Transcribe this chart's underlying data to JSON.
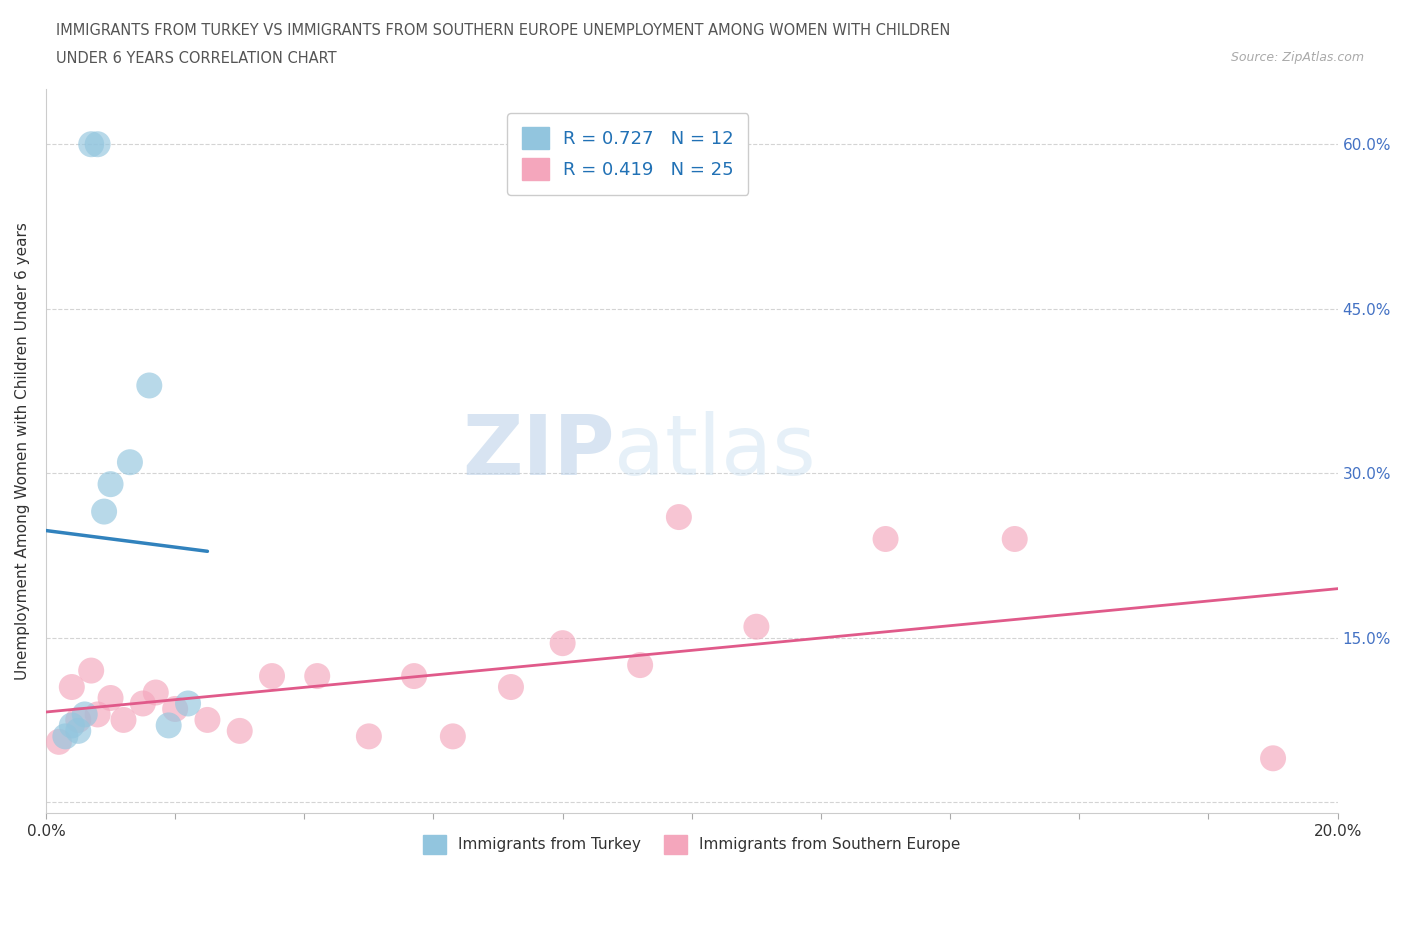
{
  "title_line1": "IMMIGRANTS FROM TURKEY VS IMMIGRANTS FROM SOUTHERN EUROPE UNEMPLOYMENT AMONG WOMEN WITH CHILDREN",
  "title_line2": "UNDER 6 YEARS CORRELATION CHART",
  "source": "Source: ZipAtlas.com",
  "ylabel": "Unemployment Among Women with Children Under 6 years",
  "xlim": [
    0.0,
    0.2
  ],
  "ylim": [
    -0.01,
    0.65
  ],
  "xticks": [
    0.0,
    0.02,
    0.04,
    0.06,
    0.08,
    0.1,
    0.12,
    0.14,
    0.16,
    0.18,
    0.2
  ],
  "yticks_right": [
    0.0,
    0.15,
    0.3,
    0.45,
    0.6
  ],
  "yticklabels_right": [
    "",
    "15.0%",
    "30.0%",
    "45.0%",
    "60.0%"
  ],
  "turkey_color": "#92c5de",
  "turkey_line_color": "#3182bd",
  "southern_color": "#f4a6bc",
  "southern_line_color": "#e05a8a",
  "R_turkey": 0.727,
  "N_turkey": 12,
  "R_southern": 0.419,
  "N_southern": 25,
  "legend_label_turkey": "Immigrants from Turkey",
  "legend_label_southern": "Immigrants from Southern Europe",
  "turkey_x": [
    0.003,
    0.004,
    0.005,
    0.006,
    0.007,
    0.008,
    0.009,
    0.01,
    0.013,
    0.016,
    0.019,
    0.022
  ],
  "turkey_y": [
    0.06,
    0.07,
    0.065,
    0.08,
    0.6,
    0.6,
    0.265,
    0.29,
    0.31,
    0.38,
    0.07,
    0.09
  ],
  "southern_x": [
    0.002,
    0.004,
    0.005,
    0.007,
    0.008,
    0.01,
    0.012,
    0.015,
    0.017,
    0.02,
    0.025,
    0.03,
    0.035,
    0.042,
    0.05,
    0.057,
    0.063,
    0.072,
    0.08,
    0.092,
    0.098,
    0.11,
    0.13,
    0.15,
    0.19
  ],
  "southern_y": [
    0.055,
    0.105,
    0.075,
    0.12,
    0.08,
    0.095,
    0.075,
    0.09,
    0.1,
    0.085,
    0.075,
    0.065,
    0.115,
    0.115,
    0.06,
    0.115,
    0.06,
    0.105,
    0.145,
    0.125,
    0.26,
    0.16,
    0.24,
    0.24,
    0.04
  ],
  "background_color": "#ffffff",
  "grid_color": "#d0d0d0",
  "text_color": "#333333",
  "title_color": "#555555",
  "right_axis_color": "#4472c4",
  "legend_text_color": "#2171b5",
  "watermark_zip": "ZIP",
  "watermark_atlas": "atlas"
}
